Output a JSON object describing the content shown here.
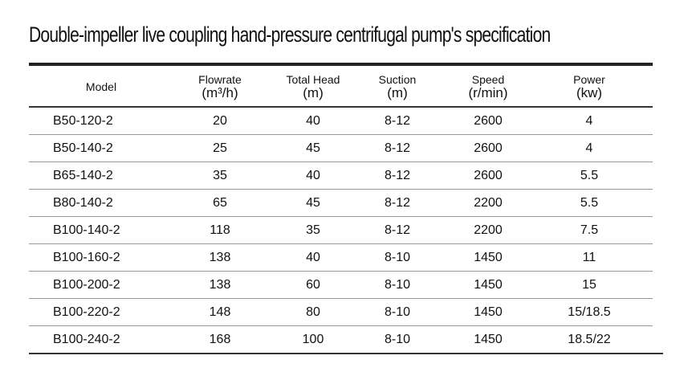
{
  "title": "Double-impeller live coupling hand-pressure centrifugal pump's specification",
  "headers": [
    {
      "label": "Model",
      "unit": ""
    },
    {
      "label": "Flowrate",
      "unit": "(m³/h)"
    },
    {
      "label": "Total Head",
      "unit": "(m)"
    },
    {
      "label": "Suction",
      "unit": "(m)"
    },
    {
      "label": "Speed",
      "unit": "(r/min)"
    },
    {
      "label": "Power",
      "unit": "(kw)"
    }
  ],
  "rows": [
    [
      "B50-120-2",
      "20",
      "40",
      "8-12",
      "2600",
      "4"
    ],
    [
      "B50-140-2",
      "25",
      "45",
      "8-12",
      "2600",
      "4"
    ],
    [
      "B65-140-2",
      "35",
      "40",
      "8-12",
      "2600",
      "5.5"
    ],
    [
      "B80-140-2",
      "65",
      "45",
      "8-12",
      "2200",
      "5.5"
    ],
    [
      "B100-140-2",
      "118",
      "35",
      "8-12",
      "2200",
      "7.5"
    ],
    [
      "B100-160-2",
      "138",
      "40",
      "8-10",
      "1450",
      "11"
    ],
    [
      "B100-200-2",
      "138",
      "60",
      "8-10",
      "1450",
      "15"
    ],
    [
      "B100-220-2",
      "148",
      "80",
      "8-10",
      "1450",
      "15/18.5"
    ],
    [
      "B100-240-2",
      "168",
      "100",
      "8-10",
      "1450",
      "18.5/22"
    ]
  ]
}
